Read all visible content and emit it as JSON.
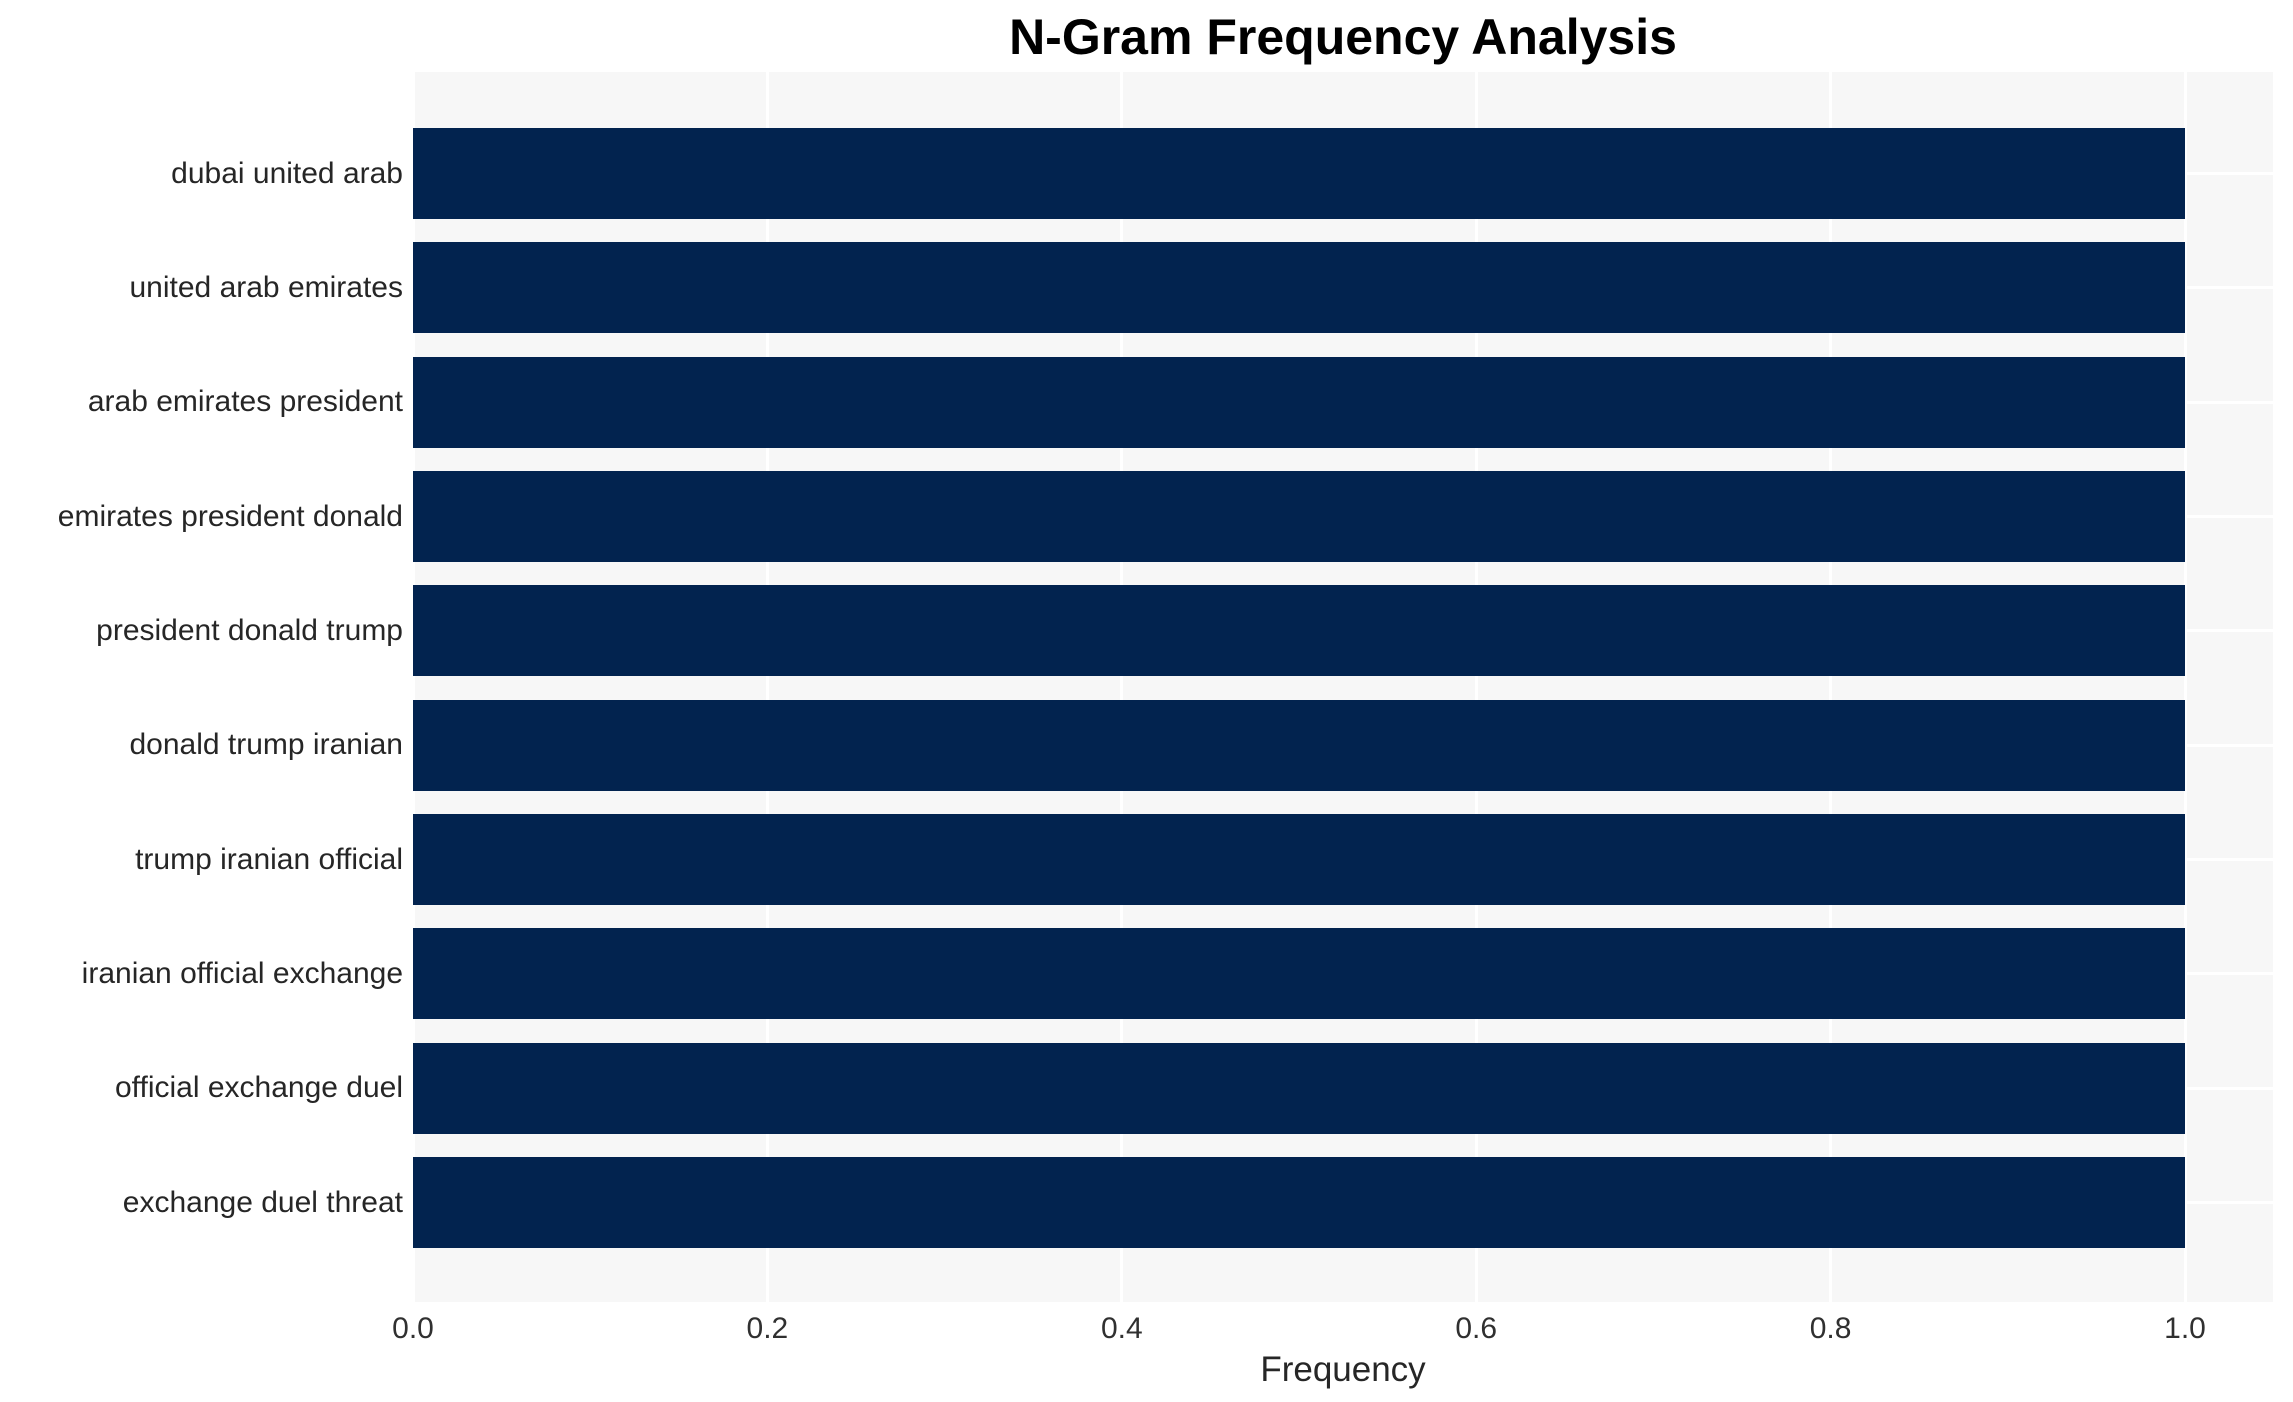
{
  "chart_data": {
    "type": "bar",
    "orientation": "horizontal",
    "title": "N-Gram Frequency Analysis",
    "xlabel": "Frequency",
    "ylabel": "",
    "categories": [
      "dubai united arab",
      "united arab emirates",
      "arab emirates president",
      "emirates president donald",
      "president donald trump",
      "donald trump iranian",
      "trump iranian official",
      "iranian official exchange",
      "official exchange duel",
      "exchange duel threat"
    ],
    "values": [
      1.0,
      1.0,
      1.0,
      1.0,
      1.0,
      1.0,
      1.0,
      1.0,
      1.0,
      1.0
    ],
    "xlim": [
      0.0,
      1.05
    ],
    "xticks": [
      0.0,
      0.2,
      0.4,
      0.6,
      0.8,
      1.0
    ],
    "xtick_labels": [
      "0.0",
      "0.2",
      "0.4",
      "0.6",
      "0.8",
      "1.0"
    ],
    "grid": true,
    "legend": false,
    "colors": {
      "bar": "#02234F",
      "plot_background": "#F7F7F7",
      "gridline": "#FFFFFF",
      "tick_text": "#303030",
      "label_text": "#262626",
      "title_text": "#000000",
      "figure_background": "#FFFFFF"
    }
  }
}
